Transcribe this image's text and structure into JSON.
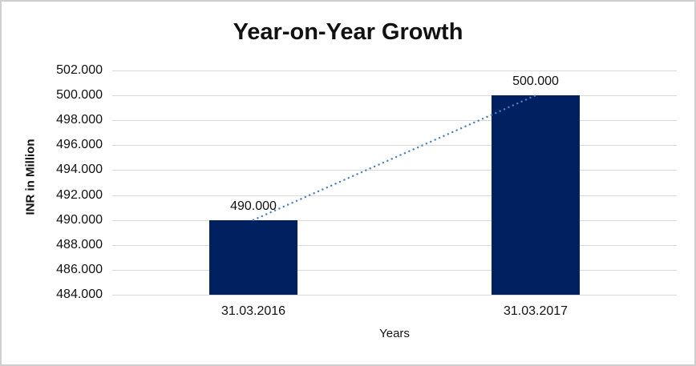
{
  "chart": {
    "title": "Year-on-Year Growth",
    "xlabel": "Years",
    "ylabel": "INR in Million"
  },
  "chart_data": {
    "type": "bar",
    "title": "Year-on-Year Growth",
    "xlabel": "Years",
    "ylabel": "INR in Million",
    "categories": [
      "31.03.2016",
      "31.03.2017"
    ],
    "values": [
      490,
      500
    ],
    "value_labels": [
      "490.000",
      "500.000"
    ],
    "ytick_labels": [
      "484.000",
      "486.000",
      "488.000",
      "490.000",
      "492.000",
      "494.000",
      "496.000",
      "498.000",
      "500.000",
      "502.000"
    ],
    "ylim": [
      484,
      502
    ],
    "ytick_step": 2,
    "grid": true,
    "legend": false,
    "bar_color": "#002060",
    "gridline_color": "#d9d9d9",
    "trendline": {
      "style": "dotted",
      "color": "#4f81bd",
      "from_value": 490,
      "to_value": 500
    },
    "frame_border_color": "#cfcfcf",
    "background_color": "#ffffff"
  }
}
